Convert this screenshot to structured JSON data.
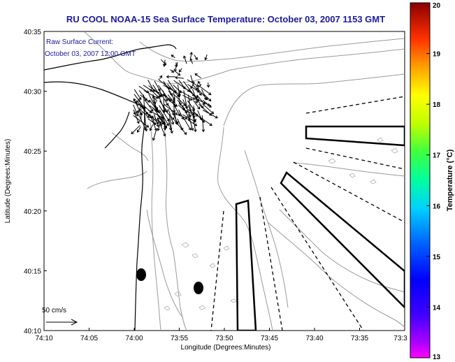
{
  "chart_data": {
    "type": "map-vector-overlay",
    "title": "RU COOL  NOAA-15  Sea Surface Temperature:  October 03, 2007 1153 GMT",
    "annotation": [
      "Raw Surface Current:",
      "October 03, 2007 12:00 GMT"
    ],
    "xlabel": "Longitude (Degrees:Minutes)",
    "ylabel": "Latitude (Degrees:Minutes)",
    "x_ticks": [
      "74:10",
      "74:05",
      "74:00",
      "73:55",
      "73:50",
      "73:45",
      "73:40",
      "73:35",
      "73:3"
    ],
    "y_ticks": [
      "40:35",
      "40:30",
      "40:25",
      "40:20",
      "40:15",
      "40:10"
    ],
    "xlim_minutes_west": [
      10,
      30
    ],
    "ylim_minutes_north": [
      10,
      35
    ],
    "scale_label": "50 cm/s",
    "colorbar": {
      "label": "Temperature (°C)",
      "ticks": [
        13,
        14,
        15,
        16,
        17,
        18,
        19,
        20
      ],
      "range": [
        13,
        20
      ],
      "colormap": "jet"
    },
    "colors": {
      "title": "#1a1aa0",
      "coast": "#000000",
      "isobath": "#999999",
      "vector": "#000000"
    },
    "current_vectors_region": {
      "lon_minutes_west_range": [
        55.5,
        60.0
      ],
      "lat_minutes_north_range": [
        27.0,
        31.5
      ],
      "mean_direction": "south-southeast"
    },
    "stations": [
      {
        "lon_minutes_west": 59.0,
        "lat_minutes_north": 14.7
      },
      {
        "lon_minutes_west": 55.6,
        "lat_minutes_north": 13.5
      }
    ]
  }
}
